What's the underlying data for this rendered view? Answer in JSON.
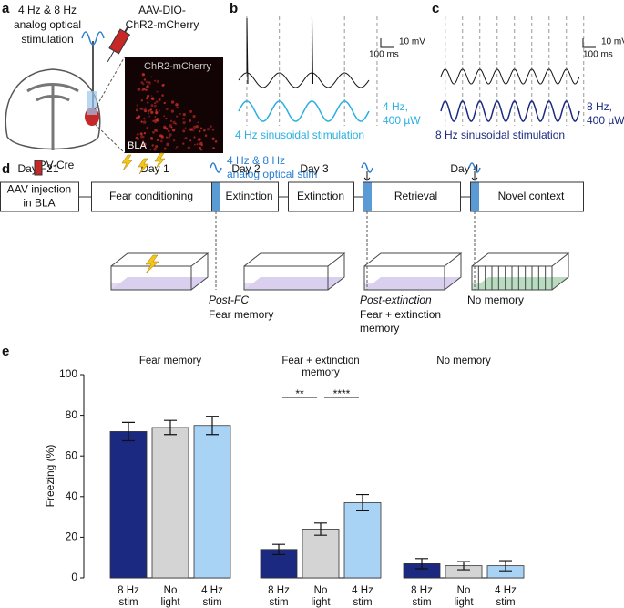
{
  "panels": {
    "a": {
      "letter": "a",
      "stim_label": [
        "4 Hz & 8 Hz",
        "analog optical",
        "stimulation"
      ],
      "virus_label": [
        "AAV-DIO-",
        "ChR2-mCherry"
      ],
      "image_label": "ChR2-mCherry",
      "region_label": "BLA",
      "mouse_label": "PV-Cre"
    },
    "b": {
      "letter": "b",
      "scale_v": "10 mV",
      "scale_t": "100 ms",
      "stim_label": [
        "4 Hz,",
        "400 µW"
      ],
      "caption": "4 Hz sinusoidal stimulation"
    },
    "c": {
      "letter": "c",
      "scale_v": "10 mV",
      "scale_t": "100 ms",
      "stim_label": [
        "8 Hz,",
        "400 µW"
      ],
      "caption": "8 Hz sinusoidal stimulation"
    },
    "d": {
      "letter": "d",
      "days": [
        "Day −21",
        "Day 1",
        "Day 2",
        "Day 3",
        "Day 4"
      ],
      "boxes": [
        [
          "AAV injection",
          "in BLA"
        ],
        [
          "Fear conditioning"
        ],
        [
          "Extinction"
        ],
        [
          "Extinction"
        ],
        [
          "Retrieval"
        ],
        [
          "Novel context"
        ]
      ],
      "stim_label": [
        "4 Hz & 8 Hz",
        "analog optical stim"
      ],
      "tests": [
        {
          "when": "Post-FC",
          "what": [
            "Fear memory"
          ]
        },
        {
          "when": "Post-extinction",
          "what": [
            "Fear + extinction",
            "memory"
          ]
        },
        {
          "when": null,
          "what": [
            "No memory"
          ]
        }
      ]
    },
    "e": {
      "letter": "e"
    }
  },
  "chart_data": {
    "type": "bar",
    "y_label": "Freezing (%)",
    "categories": [
      "Fear memory",
      "Fear + extinction memory",
      "No memory"
    ],
    "series": [
      {
        "name": "8 Hz stim",
        "color": "#1b2a80",
        "values": [
          72,
          14,
          7
        ],
        "errors": [
          4.5,
          2.5,
          2.5
        ]
      },
      {
        "name": "No light",
        "color": "#d4d4d4",
        "values": [
          74,
          24,
          6
        ],
        "errors": [
          3.5,
          3,
          2
        ]
      },
      {
        "name": "4 Hz stim",
        "color": "#a9d3f5",
        "values": [
          75,
          37,
          6
        ],
        "errors": [
          4.5,
          4,
          2.5
        ]
      }
    ],
    "significance": [
      "**",
      "****"
    ],
    "ylim": [
      0,
      100
    ],
    "yticks": [
      0,
      20,
      40,
      60,
      80,
      100
    ]
  }
}
